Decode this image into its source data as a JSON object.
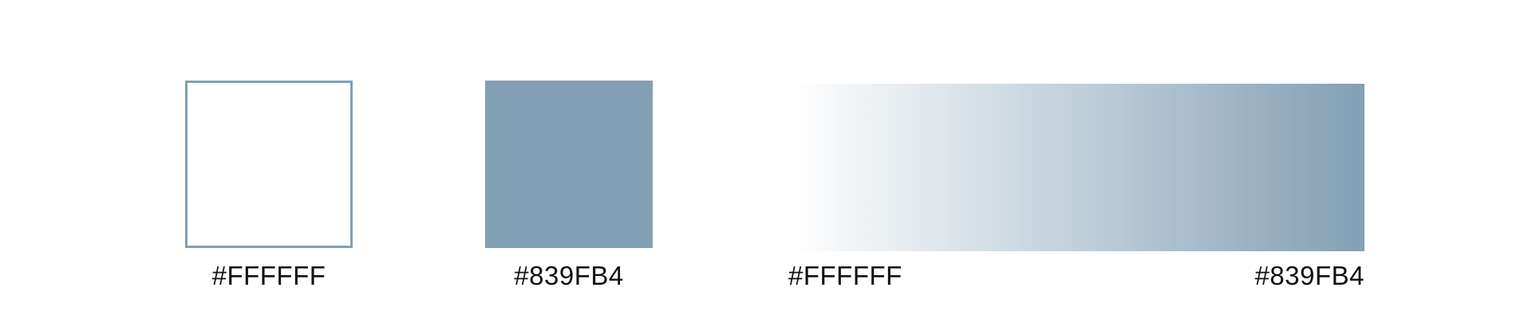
{
  "swatches": [
    {
      "hex_label": "#FFFFFF",
      "color": "#FFFFFF",
      "border_color": "#839FB4"
    },
    {
      "hex_label": "#839FB4",
      "color": "#839FB4"
    }
  ],
  "gradient": {
    "start_label": "#FFFFFF",
    "end_label": "#839FB4",
    "start_color": "#FFFFFF",
    "end_color": "#839FB4"
  }
}
